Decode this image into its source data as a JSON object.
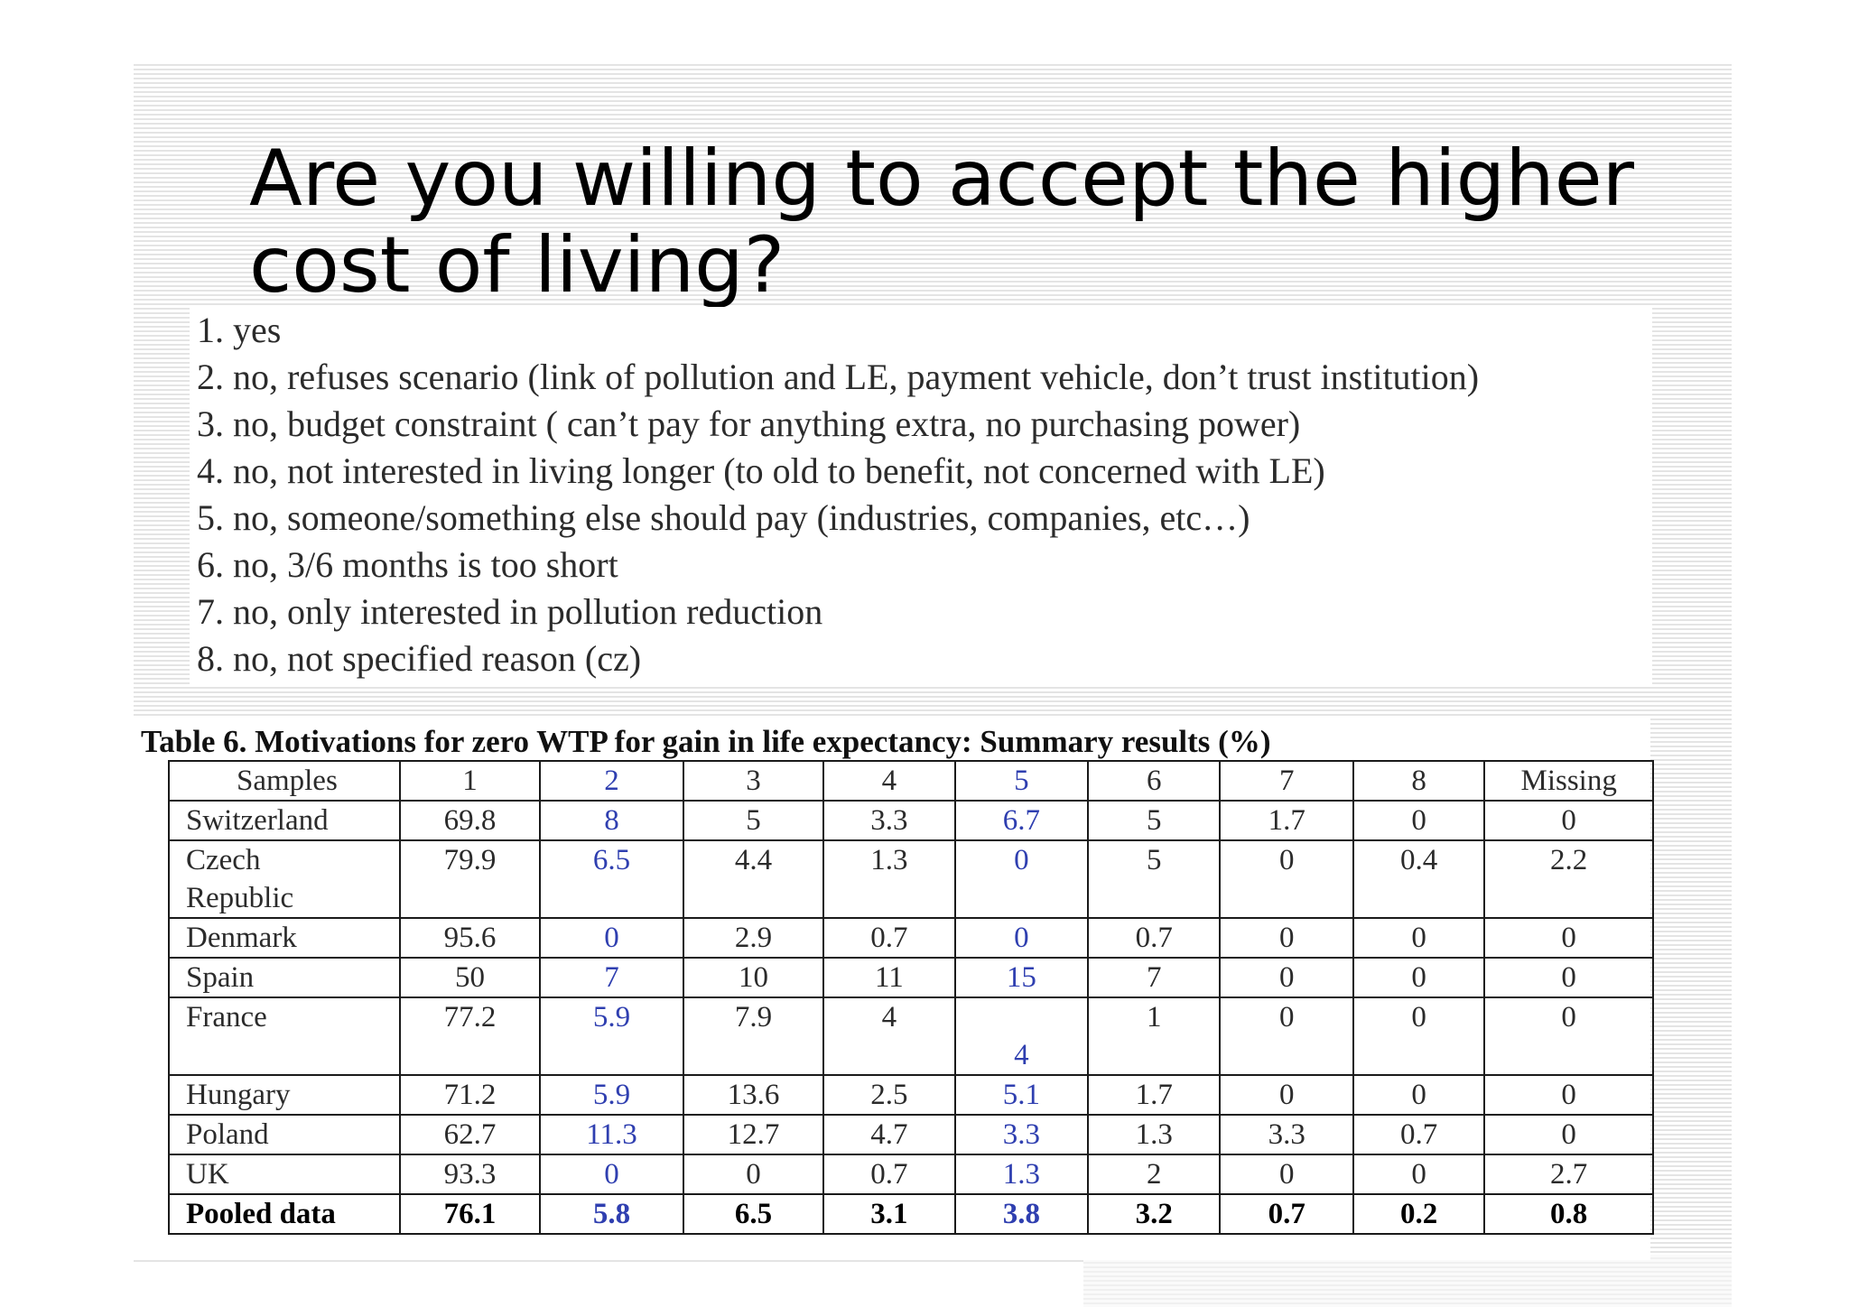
{
  "title": "Are you willing to accept the higher cost of living?",
  "options": [
    "1. yes",
    "2. no, refuses scenario (link of pollution and LE, payment vehicle, don’t trust institution)",
    "3. no, budget constraint ( can’t pay for anything extra, no purchasing power)",
    "4. no, not interested in living longer (to old to benefit, not concerned with LE)",
    "5. no, someone/something else should pay (industries, companies, etc…)",
    "6. no, 3/6 months is too short",
    "7. no, only interested in pollution reduction",
    "8. no, not specified reason (cz)"
  ],
  "table": {
    "caption": "Table 6. Motivations for zero WTP for gain in life expectancy: Summary results (%)",
    "headers": [
      "Samples",
      "1",
      "2",
      "3",
      "4",
      "5",
      "6",
      "7",
      "8",
      "Missing"
    ],
    "rows": [
      {
        "sample": "Switzerland",
        "values": [
          "69.8",
          "8",
          "5",
          "3.3",
          "6.7",
          "5",
          "1.7",
          "0",
          "0"
        ]
      },
      {
        "sample_line1": "Czech",
        "sample_line2": "Republic",
        "values": [
          "79.9",
          "6.5",
          "4.4",
          "1.3",
          "0",
          "5",
          "0",
          "0.4",
          "2.2"
        ]
      },
      {
        "sample": "Denmark",
        "values": [
          "95.6",
          "0",
          "2.9",
          "0.7",
          "0",
          "0.7",
          "0",
          "0",
          "0"
        ]
      },
      {
        "sample": "Spain",
        "values": [
          "50",
          "7",
          "10",
          "11",
          "15",
          "7",
          "0",
          "0",
          "0"
        ]
      },
      {
        "sample": "France",
        "values": [
          "77.2",
          "5.9",
          "7.9",
          "4",
          "4",
          "1",
          "0",
          "0",
          "0"
        ]
      },
      {
        "sample": "Hungary",
        "values": [
          "71.2",
          "5.9",
          "13.6",
          "2.5",
          "5.1",
          "1.7",
          "0",
          "0",
          "0"
        ]
      },
      {
        "sample": "Poland",
        "values": [
          "62.7",
          "11.3",
          "12.7",
          "4.7",
          "3.3",
          "1.3",
          "3.3",
          "0.7",
          "0"
        ]
      },
      {
        "sample": "UK",
        "values": [
          "93.3",
          "0",
          "0",
          "0.7",
          "1.3",
          "2",
          "0",
          "0",
          "2.7"
        ]
      },
      {
        "sample": "Pooled data",
        "values": [
          "76.1",
          "5.8",
          "6.5",
          "3.1",
          "3.8",
          "3.2",
          "0.7",
          "0.2",
          "0.8"
        ]
      }
    ]
  },
  "colors": {
    "text": "#2b2b2b",
    "highlight_columns": "#2f3fb0",
    "stripe": "#e4e4e4"
  }
}
